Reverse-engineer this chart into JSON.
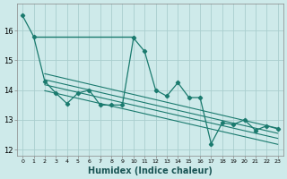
{
  "xlabel": "Humidex (Indice chaleur)",
  "background_color": "#ceeaea",
  "grid_color": "#aacece",
  "line_color": "#1a7a6e",
  "x_values": [
    0,
    1,
    2,
    3,
    4,
    5,
    6,
    7,
    8,
    9,
    10,
    11,
    12,
    13,
    14,
    15,
    16,
    17,
    18,
    19,
    20,
    21,
    22,
    23
  ],
  "y_main": [
    16.5,
    15.8,
    14.3,
    13.9,
    13.55,
    13.9,
    14.0,
    13.5,
    13.5,
    13.5,
    15.75,
    15.3,
    14.0,
    13.8,
    14.25,
    13.75,
    13.75,
    12.2,
    12.9,
    12.85,
    13.0,
    12.65,
    12.8,
    12.7
  ],
  "ylim": [
    11.8,
    16.9
  ],
  "xlim": [
    -0.5,
    23.5
  ],
  "yticks": [
    12,
    13,
    14,
    15,
    16
  ],
  "xticks": [
    0,
    1,
    2,
    3,
    4,
    5,
    6,
    7,
    8,
    9,
    10,
    11,
    12,
    13,
    14,
    15,
    16,
    17,
    18,
    19,
    20,
    21,
    22,
    23
  ],
  "trend_lines": [
    {
      "x0": 2,
      "y0": 14.55,
      "x1": 23,
      "y1": 12.72
    },
    {
      "x0": 2,
      "y0": 14.35,
      "x1": 23,
      "y1": 12.55
    },
    {
      "x0": 2,
      "y0": 14.18,
      "x1": 23,
      "y1": 12.38
    },
    {
      "x0": 2,
      "y0": 13.98,
      "x1": 23,
      "y1": 12.18
    }
  ]
}
